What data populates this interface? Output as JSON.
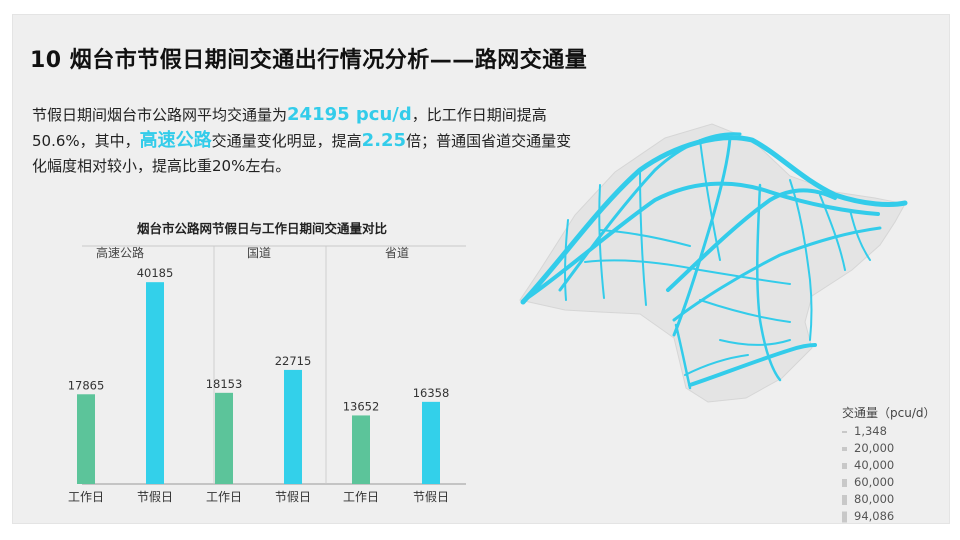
{
  "slide": {
    "title": "10 烟台市节假日期间交通出行情况分析——路网交通量",
    "summary_parts": {
      "p1": "节假日期间烟台市公路网平均交通量为",
      "h1": "24195 pcu/d",
      "p2": "，比工作日期间提高50.6%，其中，",
      "h2": "高速公路",
      "p3": "交通量变化明显，提高",
      "h3": "2.25",
      "p4": "倍；普通国省道交通量变化幅度相对较小，提高比重20%左右。"
    },
    "highlight_color": "#33ccea"
  },
  "map": {
    "road_color": "#33ccea",
    "legend": {
      "title": "交通量（pcu/d）",
      "items": [
        "1,348",
        "20,000",
        "40,000",
        "60,000",
        "80,000",
        "94,086"
      ]
    }
  },
  "chart_data": {
    "type": "bar",
    "title": "烟台市公路网节假日与工作日期间交通量对比",
    "groups": [
      {
        "name": "高速公路",
        "categories": [
          "工作日",
          "节假日"
        ],
        "values": [
          17865,
          40185
        ]
      },
      {
        "name": "国道",
        "categories": [
          "工作日",
          "节假日"
        ],
        "values": [
          18153,
          22715
        ]
      },
      {
        "name": "省道",
        "categories": [
          "工作日",
          "节假日"
        ],
        "values": [
          13652,
          16358
        ]
      }
    ],
    "category_colors": {
      "工作日": "#5cc49a",
      "节假日": "#33d0ea"
    },
    "ylim": [
      0,
      45000
    ],
    "grid": false,
    "data_labels": true
  }
}
